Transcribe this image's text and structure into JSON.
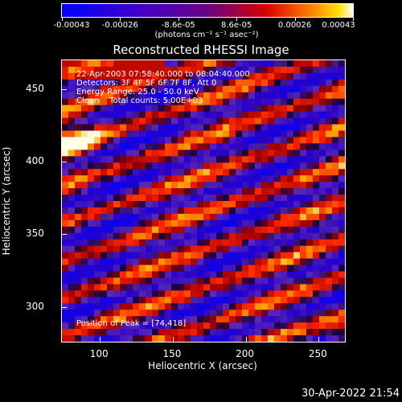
{
  "colorbar": {
    "tick_labels": [
      "-0.00043",
      "-0.00026",
      "-8.6e-05",
      "8.6e-05",
      "0.00026",
      "0.00043"
    ],
    "units": "(photons cm⁻² s⁻¹ asec⁻²)"
  },
  "title": "Reconstructed RHESSI Image",
  "annotations": {
    "line1": "22-Apr-2003 07:58:40.000 to 08:04:40.000",
    "line2": "Detectors: 3F 4F 5F 6F 7F 8F, Att 0",
    "line3": "Energy Range: 25.0 - 50.0 keV",
    "line4": "Clean    Total counts: 5.00E+03",
    "peak": "Position of Peak = [74,418]"
  },
  "chart_data": {
    "type": "heatmap",
    "title": "Reconstructed RHESSI Image",
    "xlabel": "Heliocentric X (arcsec)",
    "ylabel": "Heliocentric Y (arcsec)",
    "xlim": [
      74,
      268
    ],
    "ylim": [
      276,
      470
    ],
    "xticks": [
      100,
      150,
      200,
      250
    ],
    "yticks": [
      300,
      350,
      400,
      450
    ],
    "xtick_labels": [
      "100",
      "150",
      "200",
      "250"
    ],
    "ytick_labels": [
      "300",
      "350",
      "400",
      "450"
    ],
    "colorbar_range": [
      -0.00043,
      0.00043
    ],
    "peak_position": [
      74,
      418
    ]
  },
  "timestamp": "30-Apr-2022 21:54"
}
